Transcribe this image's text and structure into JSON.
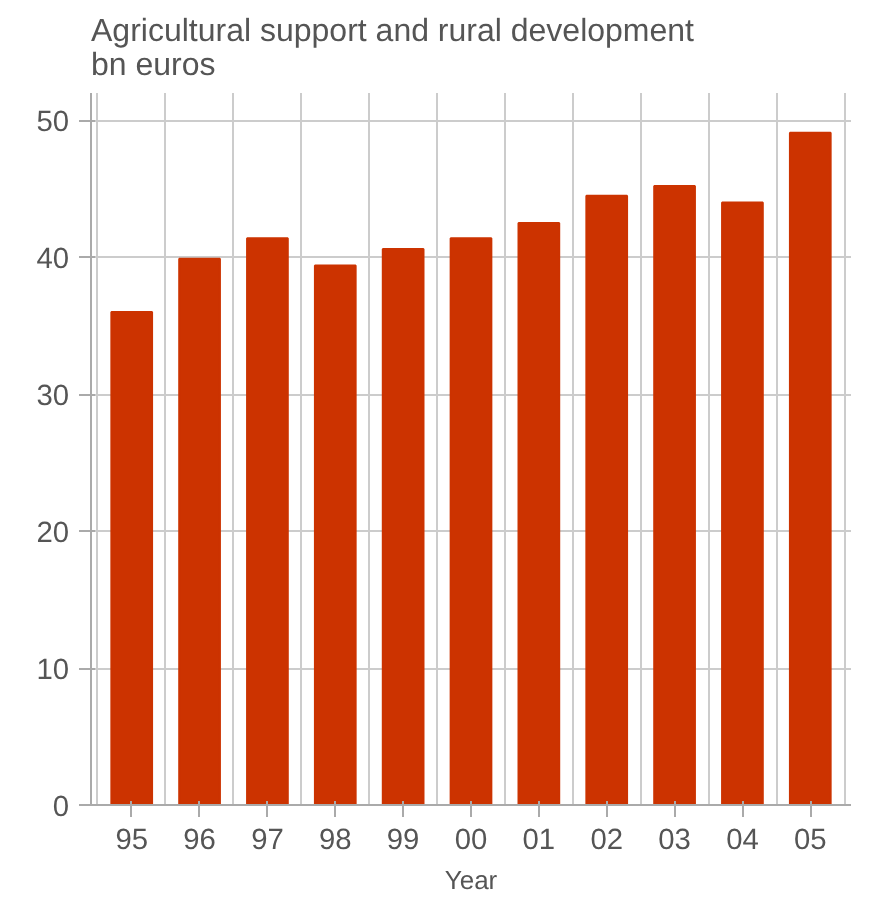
{
  "chart_data": {
    "type": "bar",
    "title": "Agricultural support and rural development",
    "subtitle": "bn euros",
    "xlabel": "Year",
    "categories": [
      "95",
      "96",
      "97",
      "98",
      "99",
      "00",
      "01",
      "02",
      "03",
      "04",
      "05"
    ],
    "values": [
      36.0,
      39.9,
      41.4,
      39.4,
      40.6,
      41.4,
      42.5,
      44.5,
      45.2,
      44.0,
      49.1
    ],
    "color": "#cc3300",
    "ylim": [
      0,
      52
    ],
    "yticks": [
      0,
      10,
      20,
      30,
      40,
      50
    ],
    "grid": true
  }
}
